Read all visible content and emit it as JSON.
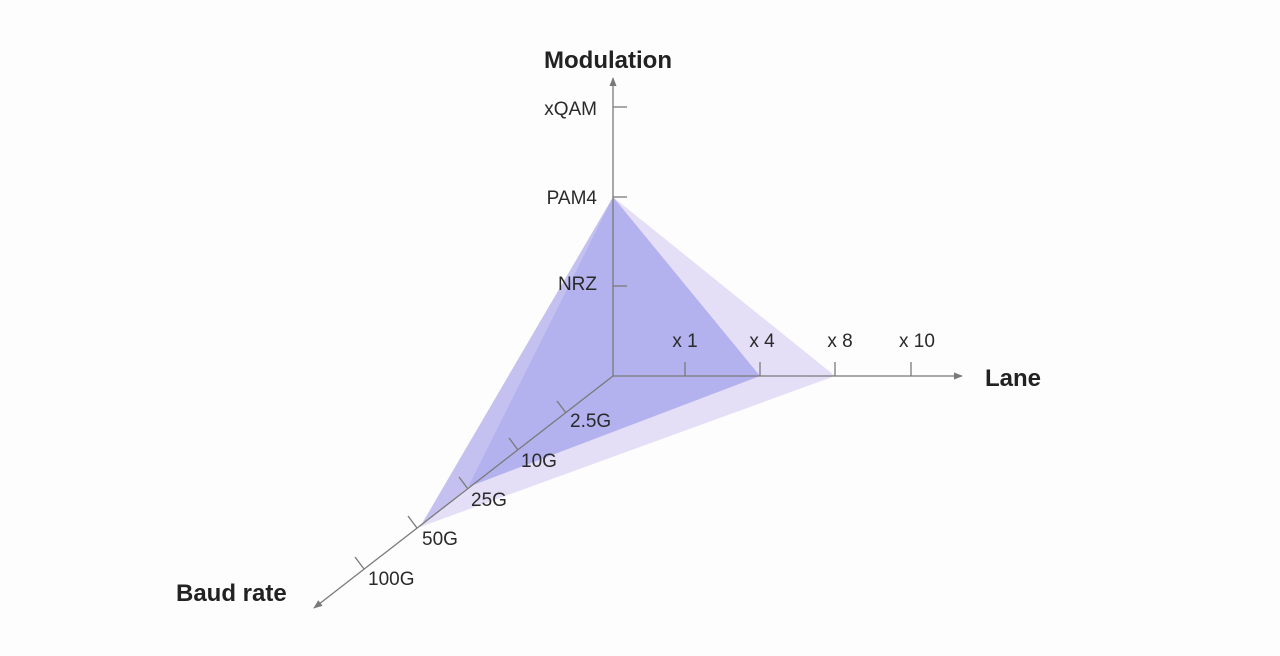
{
  "axes": {
    "modulation": {
      "title": "Modulation",
      "ticks": [
        "NRZ",
        "PAM4",
        "xQAM"
      ]
    },
    "lane": {
      "title": "Lane",
      "ticks": [
        "x 1",
        "x 4",
        "x 8",
        "x 10"
      ]
    },
    "baud_rate": {
      "title": "Baud rate",
      "ticks": [
        "2.5G",
        "10G",
        "25G",
        "50G",
        "100G"
      ]
    }
  },
  "colors": {
    "axis": "#7a7a7a",
    "surface_a": "#8a8de8",
    "surface_b": "#c6b8ee"
  },
  "surfaces": [
    {
      "modulation": "PAM4",
      "lane": "x 4",
      "baud_rate": "25G",
      "color": "#8a8de8"
    },
    {
      "modulation": "PAM4",
      "lane": "x 8",
      "baud_rate": "50G",
      "color": "#c6b8ee"
    }
  ]
}
